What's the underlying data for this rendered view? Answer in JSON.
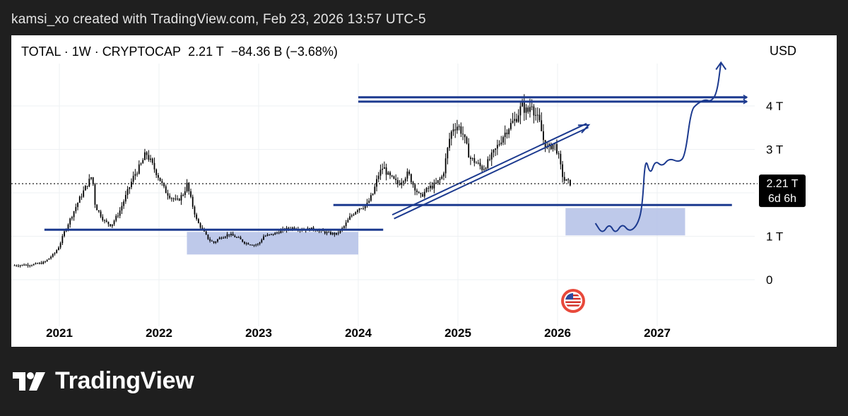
{
  "attribution": "kamsi_xo created with TradingView.com, Feb 23, 2026 13:57 UTC-5",
  "brand": {
    "name": "TradingView",
    "logo_icon": "tradingview-logo-icon"
  },
  "header": {
    "symbol": "TOTAL",
    "interval": "1W",
    "exchange": "CRYPTOCAP",
    "last": "2.21 T",
    "change": "−84.36 B (−3.68%)",
    "currency": "USD"
  },
  "price_tag": {
    "value": "2.21 T",
    "countdown": "6d 6h"
  },
  "flag_icon": "us-flag-icon",
  "colors": {
    "drawing": "#1c3a8f",
    "zone": "#b3c0e6",
    "candle": "#000000",
    "background": "#ffffff",
    "tag_bg": "#000000"
  },
  "chart_data": {
    "type": "candlestick",
    "title": "TOTAL · 1W · CRYPTOCAP",
    "units": "USD, trillions",
    "x_ticks": [
      "2021",
      "2022",
      "2023",
      "2024",
      "2025",
      "2026",
      "2027"
    ],
    "y_ticks": [
      {
        "value": 0,
        "label": "0"
      },
      {
        "value": 1,
        "label": "1 T"
      },
      {
        "value": 2,
        "label": "2 T"
      },
      {
        "value": 3,
        "label": "3 T"
      },
      {
        "value": 4,
        "label": "4 T"
      }
    ],
    "ylim": [
      -0.8,
      5.4
    ],
    "xlim": [
      2020.52,
      2028.5
    ],
    "last_price": 2.21,
    "price_path": [
      [
        2020.55,
        0.33
      ],
      [
        2020.75,
        0.35
      ],
      [
        2020.85,
        0.4
      ],
      [
        2020.95,
        0.6
      ],
      [
        2021.0,
        0.78
      ],
      [
        2021.05,
        1.1
      ],
      [
        2021.12,
        1.45
      ],
      [
        2021.2,
        1.85
      ],
      [
        2021.28,
        2.2
      ],
      [
        2021.33,
        2.4
      ],
      [
        2021.36,
        1.7
      ],
      [
        2021.45,
        1.35
      ],
      [
        2021.52,
        1.25
      ],
      [
        2021.6,
        1.55
      ],
      [
        2021.68,
        2.0
      ],
      [
        2021.75,
        2.4
      ],
      [
        2021.82,
        2.65
      ],
      [
        2021.87,
        2.92
      ],
      [
        2021.92,
        2.7
      ],
      [
        2022.0,
        2.35
      ],
      [
        2022.06,
        2.05
      ],
      [
        2022.12,
        1.9
      ],
      [
        2022.18,
        1.8
      ],
      [
        2022.25,
        2.0
      ],
      [
        2022.28,
        2.2
      ],
      [
        2022.32,
        1.85
      ],
      [
        2022.38,
        1.35
      ],
      [
        2022.45,
        1.1
      ],
      [
        2022.5,
        0.92
      ],
      [
        2022.55,
        0.85
      ],
      [
        2022.6,
        0.95
      ],
      [
        2022.7,
        1.05
      ],
      [
        2022.8,
        0.95
      ],
      [
        2022.86,
        0.85
      ],
      [
        2022.95,
        0.8
      ],
      [
        2023.0,
        0.82
      ],
      [
        2023.05,
        1.0
      ],
      [
        2023.15,
        1.05
      ],
      [
        2023.25,
        1.15
      ],
      [
        2023.35,
        1.2
      ],
      [
        2023.45,
        1.15
      ],
      [
        2023.55,
        1.17
      ],
      [
        2023.62,
        1.12
      ],
      [
        2023.7,
        1.07
      ],
      [
        2023.78,
        1.05
      ],
      [
        2023.85,
        1.2
      ],
      [
        2023.92,
        1.45
      ],
      [
        2024.0,
        1.65
      ],
      [
        2024.08,
        1.7
      ],
      [
        2024.15,
        2.0
      ],
      [
        2024.2,
        2.4
      ],
      [
        2024.25,
        2.6
      ],
      [
        2024.3,
        2.4
      ],
      [
        2024.4,
        2.2
      ],
      [
        2024.5,
        2.45
      ],
      [
        2024.55,
        2.2
      ],
      [
        2024.62,
        1.9
      ],
      [
        2024.7,
        2.1
      ],
      [
        2024.78,
        2.2
      ],
      [
        2024.85,
        2.4
      ],
      [
        2024.88,
        2.8
      ],
      [
        2024.92,
        3.3
      ],
      [
        2024.95,
        3.5
      ],
      [
        2025.0,
        3.55
      ],
      [
        2025.05,
        3.35
      ],
      [
        2025.12,
        2.8
      ],
      [
        2025.18,
        2.7
      ],
      [
        2025.25,
        2.55
      ],
      [
        2025.3,
        2.7
      ],
      [
        2025.38,
        3.0
      ],
      [
        2025.45,
        3.3
      ],
      [
        2025.52,
        3.55
      ],
      [
        2025.58,
        3.7
      ],
      [
        2025.64,
        4.0
      ],
      [
        2025.7,
        3.85
      ],
      [
        2025.74,
        4.1
      ],
      [
        2025.76,
        3.9
      ],
      [
        2025.82,
        3.6
      ],
      [
        2025.86,
        3.2
      ],
      [
        2025.9,
        3.0
      ],
      [
        2025.96,
        3.15
      ],
      [
        2026.0,
        2.95
      ],
      [
        2026.03,
        2.6
      ],
      [
        2026.06,
        2.3
      ],
      [
        2026.1,
        2.25
      ],
      [
        2026.14,
        2.21
      ]
    ],
    "drawings": {
      "support_lines": [
        {
          "x": [
            2020.85,
            2024.25
          ],
          "y": 1.15
        },
        {
          "x": [
            2023.75,
            2027.75
          ],
          "y": 1.72
        },
        {
          "x": [
            2024.0,
            2027.9
          ],
          "y": 4.1
        },
        {
          "x": [
            2024.0,
            2027.9
          ],
          "y": 4.2
        }
      ],
      "zones": [
        {
          "x": [
            2022.28,
            2024.0
          ],
          "y": [
            0.58,
            1.1
          ]
        },
        {
          "x": [
            2026.08,
            2027.28
          ],
          "y": [
            1.02,
            1.65
          ]
        }
      ],
      "rising_channel": {
        "from": [
          2024.35,
          1.45
        ],
        "to": [
          2026.3,
          3.55
        ]
      },
      "projection_path": [
        [
          2026.38,
          1.3
        ],
        [
          2026.45,
          1.05
        ],
        [
          2026.52,
          1.3
        ],
        [
          2026.58,
          1.05
        ],
        [
          2026.65,
          1.3
        ],
        [
          2026.72,
          1.1
        ],
        [
          2026.8,
          1.25
        ],
        [
          2026.85,
          1.65
        ],
        [
          2026.88,
          2.85
        ],
        [
          2026.93,
          2.4
        ],
        [
          2026.98,
          2.75
        ],
        [
          2027.05,
          2.6
        ],
        [
          2027.12,
          2.8
        ],
        [
          2027.22,
          2.7
        ],
        [
          2027.28,
          2.85
        ],
        [
          2027.34,
          3.9
        ],
        [
          2027.4,
          4.05
        ],
        [
          2027.48,
          4.15
        ],
        [
          2027.54,
          4.1
        ],
        [
          2027.6,
          4.3
        ],
        [
          2027.64,
          5.0
        ]
      ]
    }
  }
}
